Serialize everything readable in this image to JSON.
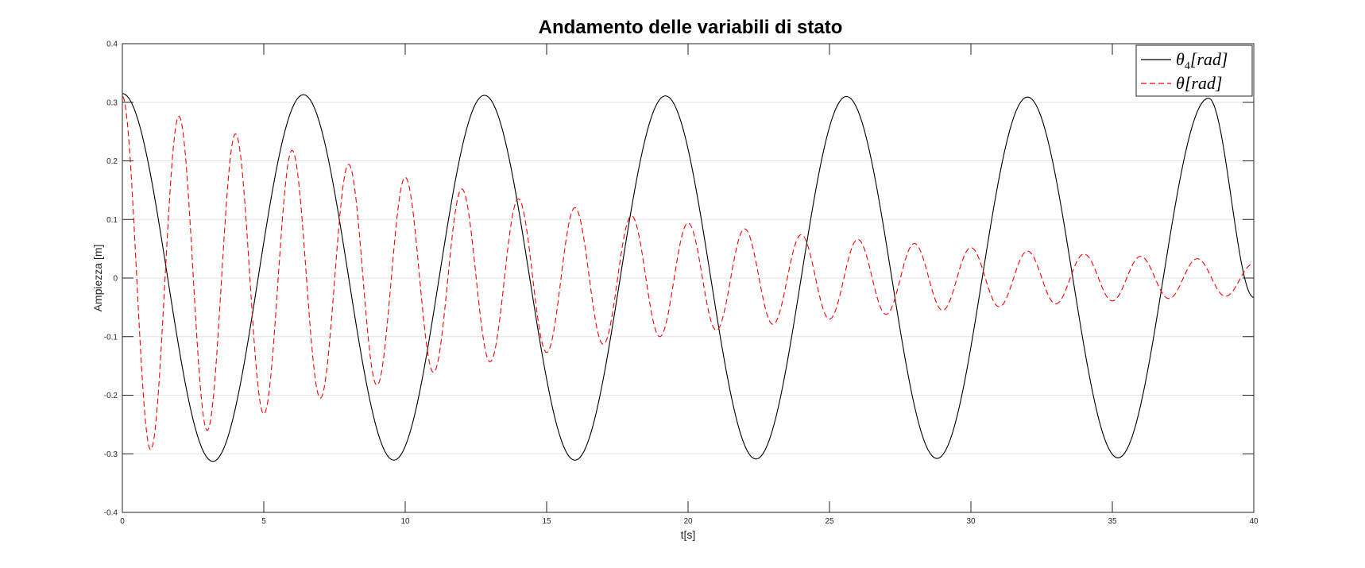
{
  "chart_data": {
    "type": "line",
    "title": "Andamento delle variabili di stato",
    "xlabel": "t[s]",
    "ylabel": "Ampiezza [m]",
    "xlim": [
      0,
      40
    ],
    "ylim": [
      -0.4,
      0.4
    ],
    "xticks": [
      "0",
      "5",
      "10",
      "15",
      "20",
      "25",
      "30",
      "35",
      "40"
    ],
    "yticks": [
      "0.4",
      "0.3",
      "0.2",
      "0.1",
      "0",
      "-0.1",
      "-0.2",
      "-0.3",
      "-0.4"
    ],
    "grid": "horizontal",
    "legend_position": "top-right",
    "series": [
      {
        "name": "θ4[rad]",
        "label_main": "θ",
        "label_sub": "4",
        "label_rest": "[rad]",
        "color": "#000000",
        "style": "solid",
        "x": [
          0,
          3.2,
          6.4,
          9.6,
          12.8,
          16.0,
          19.2,
          22.4,
          25.6,
          28.8,
          32.0,
          35.2,
          38.4,
          40
        ],
        "y": [
          0.315,
          -0.313,
          0.313,
          -0.311,
          0.312,
          -0.311,
          0.311,
          -0.309,
          0.31,
          -0.308,
          0.309,
          -0.307,
          0.307,
          -0.033
        ]
      },
      {
        "name": "θ[rad]",
        "label_main": "θ",
        "label_sub": "",
        "label_rest": "[rad]",
        "color": "#ff0000",
        "style": "dashed",
        "x": [
          0,
          1.0,
          2.0,
          3.0,
          4.0,
          5.0,
          6.0,
          7.0,
          8.0,
          9.0,
          10.0,
          11.0,
          12.0,
          13.0,
          14.0,
          15.0,
          16.0,
          17.0,
          18.0,
          19.0,
          20.0,
          21.0,
          22.0,
          23.0,
          24.0,
          25.0,
          26.0,
          27.0,
          28.0,
          29.0,
          30.0,
          31.0,
          32.0,
          33.0,
          34.0,
          35.0,
          36.0,
          37.0,
          38.0,
          39.0,
          40.0
        ],
        "y": [
          0.31,
          -0.293,
          0.276,
          -0.26,
          0.246,
          -0.232,
          0.218,
          -0.205,
          0.194,
          -0.183,
          0.172,
          -0.161,
          0.152,
          -0.143,
          0.135,
          -0.127,
          0.12,
          -0.113,
          0.106,
          -0.1,
          0.094,
          -0.089,
          0.084,
          -0.079,
          0.074,
          -0.07,
          0.066,
          -0.062,
          0.059,
          -0.055,
          0.052,
          -0.049,
          0.046,
          -0.044,
          0.041,
          -0.039,
          0.037,
          -0.035,
          0.033,
          -0.031,
          0.025
        ]
      }
    ]
  }
}
